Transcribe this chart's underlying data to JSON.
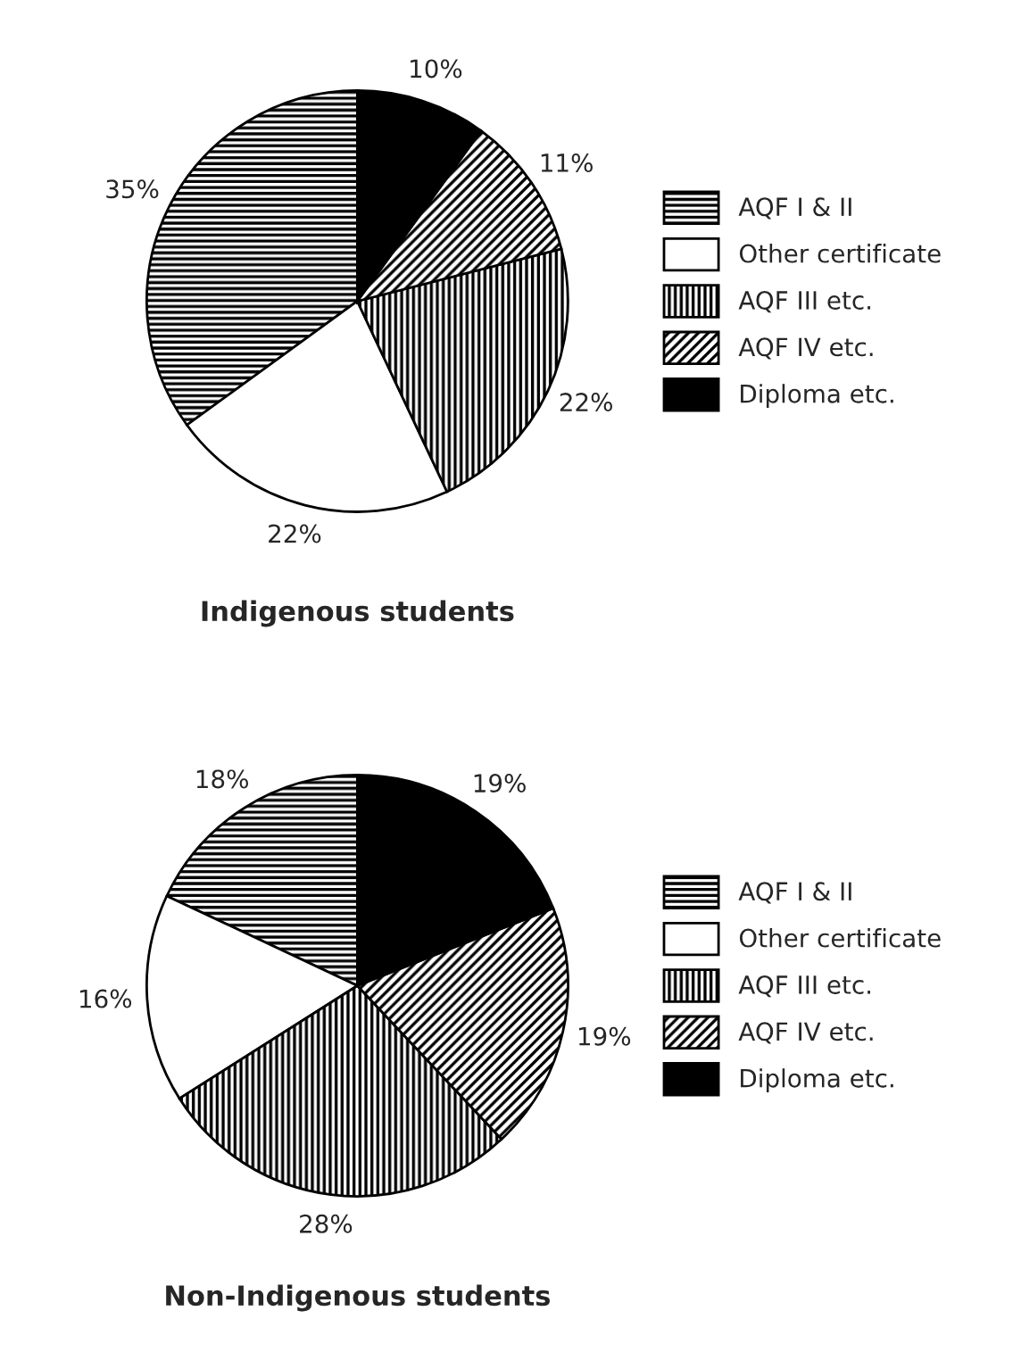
{
  "chart_data": [
    {
      "type": "pie",
      "title": "Indigenous students",
      "categories": [
        "AQF I & II",
        "Other certificate",
        "AQF III etc.",
        "AQF IV etc.",
        "Diploma etc."
      ],
      "values": [
        35,
        22,
        22,
        11,
        10
      ],
      "value_labels": [
        "35%",
        "22%",
        "22%",
        "11%",
        "10%"
      ],
      "colors": [
        "#ffffff",
        "#ffffff",
        "#ffffff",
        "#ffffff",
        "#000000"
      ],
      "legend": "right"
    },
    {
      "type": "pie",
      "title": "Non-Indigenous students",
      "categories": [
        "AQF I & II",
        "Other certificate",
        "AQF III etc.",
        "AQF IV etc.",
        "Diploma etc."
      ],
      "values": [
        18,
        16,
        28,
        19,
        19
      ],
      "value_labels": [
        "18%",
        "16%",
        "28%",
        "19%",
        "19%"
      ],
      "colors": [
        "#ffffff",
        "#ffffff",
        "#ffffff",
        "#ffffff",
        "#000000"
      ],
      "legend": "right"
    }
  ]
}
